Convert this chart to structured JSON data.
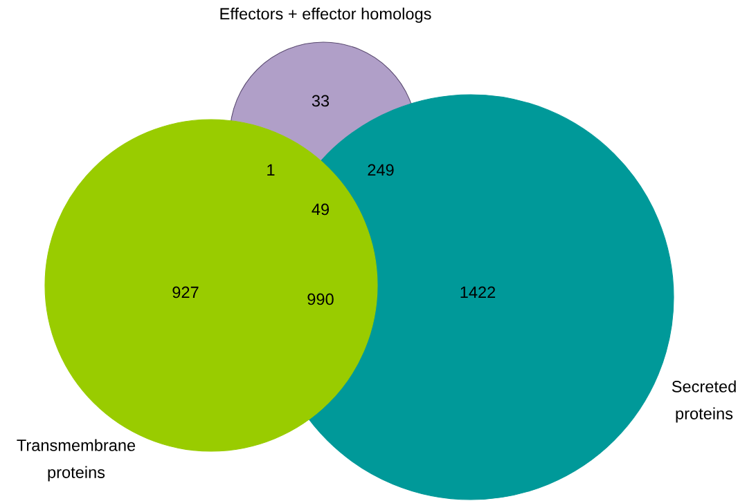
{
  "chart_data": {
    "type": "other",
    "categories": [
      null,
      null,
      null,
      null,
      null,
      null,
      null
    ],
    "values": [
      33,
      1,
      249,
      49,
      927,
      990,
      1422
    ],
    "colors": [
      "#b09fc8",
      "#99cc00",
      "#009999",
      "#99cc00",
      "#99cc00",
      "#99cc00",
      "#009999"
    ],
    "annotations": [
      "Effectors + effector homologs",
      "Transmembrane\nproteins",
      "Secreted\nproteins"
    ],
    "data_labels": true
  }
}
